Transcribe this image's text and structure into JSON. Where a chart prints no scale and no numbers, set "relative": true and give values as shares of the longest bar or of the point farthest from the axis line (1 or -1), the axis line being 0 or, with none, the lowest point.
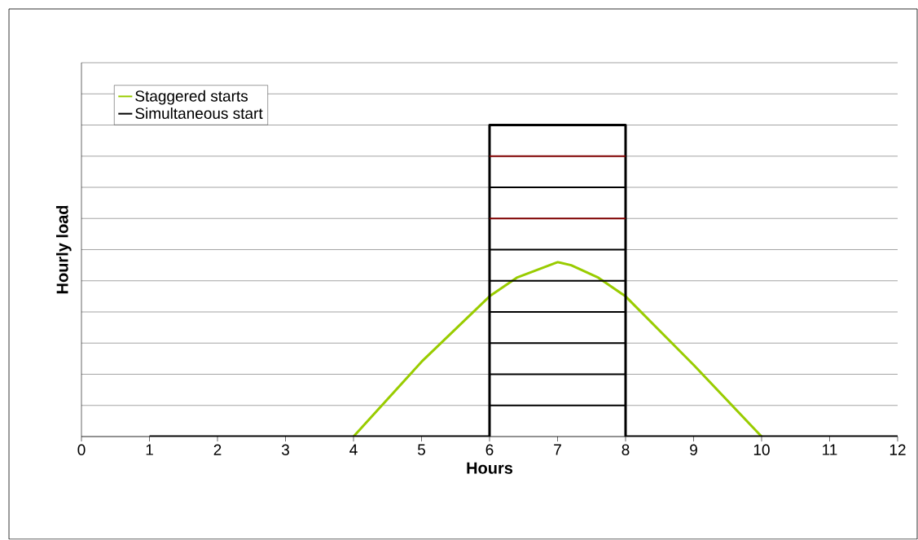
{
  "chart_data": {
    "type": "line",
    "xlabel": "Hours",
    "ylabel": "Hourly load",
    "relative": true,
    "xlim": [
      0,
      12
    ],
    "xticks": [
      0,
      1,
      2,
      3,
      4,
      5,
      6,
      7,
      8,
      9,
      10,
      11,
      12
    ],
    "grid": "y",
    "legend": "top left",
    "marker": "none",
    "line_style": "solid",
    "series": [
      {
        "name": "Staggered starts",
        "color": "#99cc00",
        "x": [
          4,
          5,
          6,
          6.4,
          7,
          7.2,
          7.6,
          8,
          9,
          10
        ],
        "values": [
          0,
          0.24,
          0.45,
          0.51,
          0.56,
          0.55,
          0.51,
          0.45,
          0.23,
          0
        ]
      },
      {
        "name": "Simultaneous start",
        "color": "#000000",
        "x": [
          1,
          6,
          6,
          8,
          8,
          12
        ],
        "values": [
          0,
          0,
          1,
          1,
          0,
          0
        ]
      },
      {
        "color": "#000000",
        "x": [
          6,
          8
        ],
        "values": [
          0.1,
          0.1
        ]
      },
      {
        "color": "#000000",
        "x": [
          6,
          8
        ],
        "values": [
          0.2,
          0.2
        ]
      },
      {
        "color": "#000000",
        "x": [
          6,
          8
        ],
        "values": [
          0.3,
          0.3
        ]
      },
      {
        "color": "#000000",
        "x": [
          6,
          8
        ],
        "values": [
          0.4,
          0.4
        ]
      },
      {
        "color": "#000000",
        "x": [
          6,
          8
        ],
        "values": [
          0.5,
          0.5
        ]
      },
      {
        "color": "#000000",
        "x": [
          6,
          8
        ],
        "values": [
          0.6,
          0.6
        ]
      },
      {
        "color": "#800000",
        "x": [
          6,
          8
        ],
        "values": [
          0.7,
          0.7
        ]
      },
      {
        "color": "#000000",
        "x": [
          6,
          8
        ],
        "values": [
          0.8,
          0.8
        ]
      },
      {
        "color": "#800000",
        "x": [
          6,
          8
        ],
        "values": [
          0.9,
          0.9
        ]
      }
    ]
  }
}
